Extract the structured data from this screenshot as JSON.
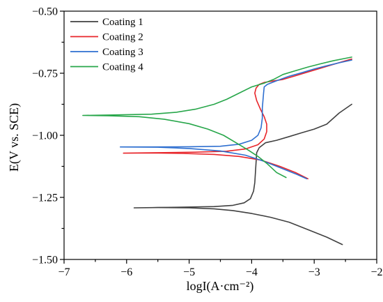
{
  "chart_data": {
    "type": "line",
    "xlabel": "logI(A·cm⁻²)",
    "ylabel": "E(V vs. SCE)",
    "xlim": [
      -7,
      -2
    ],
    "ylim": [
      -1.5,
      -0.5
    ],
    "x_ticks": [
      -7,
      -6,
      -5,
      -4,
      -3,
      -2
    ],
    "y_ticks": [
      -1.5,
      -1.25,
      -1.0,
      -0.75,
      -0.5
    ],
    "x_tick_labels": [
      "−7",
      "−6",
      "−5",
      "−4",
      "−3",
      "−2"
    ],
    "y_tick_labels": [
      "−1.50",
      "−1.25",
      "−1.00",
      "−0.75",
      "−0.50"
    ],
    "grid": false,
    "legend_position": "top-left",
    "series": [
      {
        "name": "Coating 1",
        "color": "#404040",
        "points": [
          [
            -2.55,
            -1.44
          ],
          [
            -2.8,
            -1.41
          ],
          [
            -3.1,
            -1.38
          ],
          [
            -3.4,
            -1.35
          ],
          [
            -3.7,
            -1.33
          ],
          [
            -4.0,
            -1.315
          ],
          [
            -4.3,
            -1.303
          ],
          [
            -4.6,
            -1.296
          ],
          [
            -5.0,
            -1.292
          ],
          [
            -5.5,
            -1.291
          ],
          [
            -5.88,
            -1.292
          ],
          [
            -5.2,
            -1.29
          ],
          [
            -4.6,
            -1.287
          ],
          [
            -4.3,
            -1.282
          ],
          [
            -4.12,
            -1.272
          ],
          [
            -4.02,
            -1.255
          ],
          [
            -3.97,
            -1.225
          ],
          [
            -3.95,
            -1.19
          ],
          [
            -3.94,
            -1.15
          ],
          [
            -3.93,
            -1.11
          ],
          [
            -3.92,
            -1.07
          ],
          [
            -3.88,
            -1.05
          ],
          [
            -3.78,
            -1.03
          ],
          [
            -3.6,
            -1.02
          ],
          [
            -3.4,
            -1.005
          ],
          [
            -3.2,
            -0.99
          ],
          [
            -3.0,
            -0.975
          ],
          [
            -2.8,
            -0.955
          ],
          [
            -2.6,
            -0.91
          ],
          [
            -2.4,
            -0.875
          ]
        ]
      },
      {
        "name": "Coating 2",
        "color": "#e8252a",
        "points": [
          [
            -3.1,
            -1.175
          ],
          [
            -3.3,
            -1.15
          ],
          [
            -3.55,
            -1.125
          ],
          [
            -3.85,
            -1.1
          ],
          [
            -4.2,
            -1.085
          ],
          [
            -4.6,
            -1.077
          ],
          [
            -5.1,
            -1.073
          ],
          [
            -5.6,
            -1.071
          ],
          [
            -6.05,
            -1.072
          ],
          [
            -5.5,
            -1.07
          ],
          [
            -4.9,
            -1.068
          ],
          [
            -4.4,
            -1.064
          ],
          [
            -4.1,
            -1.055
          ],
          [
            -3.9,
            -1.038
          ],
          [
            -3.8,
            -1.015
          ],
          [
            -3.76,
            -0.985
          ],
          [
            -3.76,
            -0.955
          ],
          [
            -3.8,
            -0.925
          ],
          [
            -3.86,
            -0.895
          ],
          [
            -3.92,
            -0.86
          ],
          [
            -3.95,
            -0.83
          ],
          [
            -3.93,
            -0.81
          ],
          [
            -3.88,
            -0.795
          ],
          [
            -3.8,
            -0.787
          ],
          [
            -3.7,
            -0.783
          ],
          [
            -3.5,
            -0.775
          ],
          [
            -3.3,
            -0.76
          ],
          [
            -3.1,
            -0.745
          ],
          [
            -2.9,
            -0.73
          ],
          [
            -2.7,
            -0.715
          ],
          [
            -2.5,
            -0.7
          ],
          [
            -2.4,
            -0.693
          ]
        ]
      },
      {
        "name": "Coating 3",
        "color": "#2e6fd0",
        "points": [
          [
            -3.12,
            -1.175
          ],
          [
            -3.3,
            -1.155
          ],
          [
            -3.55,
            -1.13
          ],
          [
            -3.8,
            -1.105
          ],
          [
            -4.1,
            -1.08
          ],
          [
            -4.5,
            -1.063
          ],
          [
            -5.0,
            -1.053
          ],
          [
            -5.5,
            -1.048
          ],
          [
            -6.1,
            -1.047
          ],
          [
            -5.6,
            -1.047
          ],
          [
            -5.0,
            -1.046
          ],
          [
            -4.5,
            -1.044
          ],
          [
            -4.2,
            -1.036
          ],
          [
            -4.0,
            -1.02
          ],
          [
            -3.9,
            -1.0
          ],
          [
            -3.85,
            -0.97
          ],
          [
            -3.83,
            -0.93
          ],
          [
            -3.83,
            -0.89
          ],
          [
            -3.82,
            -0.86
          ],
          [
            -3.81,
            -0.83
          ],
          [
            -3.8,
            -0.805
          ],
          [
            -3.75,
            -0.795
          ],
          [
            -3.6,
            -0.78
          ],
          [
            -3.4,
            -0.762
          ],
          [
            -3.2,
            -0.748
          ],
          [
            -3.0,
            -0.733
          ],
          [
            -2.8,
            -0.72
          ],
          [
            -2.6,
            -0.708
          ],
          [
            -2.4,
            -0.697
          ]
        ]
      },
      {
        "name": "Coating 4",
        "color": "#27a64a",
        "points": [
          [
            -3.45,
            -1.17
          ],
          [
            -3.6,
            -1.15
          ],
          [
            -3.75,
            -1.115
          ],
          [
            -3.9,
            -1.085
          ],
          [
            -4.05,
            -1.06
          ],
          [
            -4.25,
            -1.03
          ],
          [
            -4.45,
            -1.0
          ],
          [
            -4.7,
            -0.975
          ],
          [
            -5.0,
            -0.953
          ],
          [
            -5.4,
            -0.935
          ],
          [
            -5.8,
            -0.925
          ],
          [
            -6.3,
            -0.921
          ],
          [
            -6.7,
            -0.92
          ],
          [
            -6.2,
            -0.918
          ],
          [
            -5.6,
            -0.915
          ],
          [
            -5.2,
            -0.907
          ],
          [
            -4.9,
            -0.895
          ],
          [
            -4.6,
            -0.875
          ],
          [
            -4.4,
            -0.855
          ],
          [
            -4.2,
            -0.83
          ],
          [
            -4.0,
            -0.805
          ],
          [
            -3.8,
            -0.79
          ],
          [
            -3.65,
            -0.775
          ],
          [
            -3.5,
            -0.755
          ],
          [
            -3.3,
            -0.74
          ],
          [
            -3.1,
            -0.725
          ],
          [
            -2.9,
            -0.712
          ],
          [
            -2.7,
            -0.7
          ],
          [
            -2.5,
            -0.69
          ],
          [
            -2.4,
            -0.685
          ]
        ]
      }
    ]
  }
}
